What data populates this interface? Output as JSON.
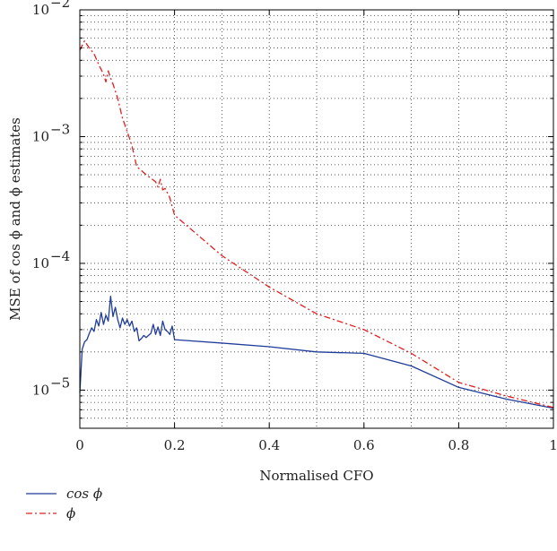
{
  "chart_data": {
    "type": "line",
    "xlabel": "Normalised CFO",
    "ylabel": "MSE of cos ϕ and ϕ estimates",
    "xlim": [
      0,
      1
    ],
    "ylim": [
      5e-06,
      0.01
    ],
    "yscale": "log",
    "grid": true,
    "grid_style": "dotted",
    "legend_position": "bottom-left, below plot",
    "x_ticks": [
      0,
      0.2,
      0.4,
      0.6,
      0.8,
      1
    ],
    "x_tick_labels": [
      "0",
      "0.2",
      "0.4",
      "0.6",
      "0.8",
      "1"
    ],
    "y_ticks": [
      1e-05,
      0.0001,
      0.001,
      0.01
    ],
    "y_tick_labels": [
      {
        "base": "10",
        "exp": "−5"
      },
      {
        "base": "10",
        "exp": "−4"
      },
      {
        "base": "10",
        "exp": "−3"
      },
      {
        "base": "10",
        "exp": "−2"
      }
    ],
    "series": [
      {
        "name": "cos ϕ",
        "color": "#1f3c99",
        "dash": "solid",
        "points": [
          [
            0,
            9.5e-06
          ],
          [
            0.005,
            2.1e-05
          ],
          [
            0.01,
            2.4e-05
          ],
          [
            0.015,
            2.5e-05
          ],
          [
            0.02,
            2.8e-05
          ],
          [
            0.025,
            3.1e-05
          ],
          [
            0.03,
            2.9e-05
          ],
          [
            0.035,
            3.6e-05
          ],
          [
            0.04,
            3.2e-05
          ],
          [
            0.045,
            4.1e-05
          ],
          [
            0.05,
            3.3e-05
          ],
          [
            0.055,
            3.9e-05
          ],
          [
            0.06,
            3.5e-05
          ],
          [
            0.065,
            5.5e-05
          ],
          [
            0.07,
            3.8e-05
          ],
          [
            0.075,
            4.5e-05
          ],
          [
            0.08,
            3.6e-05
          ],
          [
            0.085,
            3.1e-05
          ],
          [
            0.09,
            3.7e-05
          ],
          [
            0.095,
            3.3e-05
          ],
          [
            0.1,
            3.6e-05
          ],
          [
            0.105,
            3.2e-05
          ],
          [
            0.11,
            3.5e-05
          ],
          [
            0.115,
            2.9e-05
          ],
          [
            0.12,
            3.1e-05
          ],
          [
            0.125,
            2.45e-05
          ],
          [
            0.13,
            2.55e-05
          ],
          [
            0.135,
            2.7e-05
          ],
          [
            0.14,
            2.6e-05
          ],
          [
            0.145,
            2.7e-05
          ],
          [
            0.15,
            2.8e-05
          ],
          [
            0.155,
            3.3e-05
          ],
          [
            0.16,
            2.75e-05
          ],
          [
            0.165,
            3.15e-05
          ],
          [
            0.17,
            2.7e-05
          ],
          [
            0.175,
            3.5e-05
          ],
          [
            0.18,
            3e-05
          ],
          [
            0.185,
            2.9e-05
          ],
          [
            0.19,
            2.75e-05
          ],
          [
            0.195,
            3.2e-05
          ],
          [
            0.2,
            2.5e-05
          ],
          [
            0.3,
            2.35e-05
          ],
          [
            0.4,
            2.2e-05
          ],
          [
            0.5,
            2e-05
          ],
          [
            0.6,
            1.95e-05
          ],
          [
            0.7,
            1.55e-05
          ],
          [
            0.8,
            1.05e-05
          ],
          [
            0.9,
            8.5e-06
          ],
          [
            1.0,
            7.2e-06
          ]
        ]
      },
      {
        "name": "ϕ",
        "color": "#e02020",
        "dash": "dashdot",
        "points": [
          [
            0,
            0.0048
          ],
          [
            0.01,
            0.0057
          ],
          [
            0.02,
            0.005
          ],
          [
            0.03,
            0.0045
          ],
          [
            0.04,
            0.0037
          ],
          [
            0.05,
            0.0031
          ],
          [
            0.055,
            0.0027
          ],
          [
            0.06,
            0.0033
          ],
          [
            0.065,
            0.0029
          ],
          [
            0.07,
            0.0026
          ],
          [
            0.08,
            0.002
          ],
          [
            0.09,
            0.0014
          ],
          [
            0.1,
            0.0011
          ],
          [
            0.11,
            0.00085
          ],
          [
            0.12,
            0.00058
          ],
          [
            0.13,
            0.00054
          ],
          [
            0.14,
            0.0005
          ],
          [
            0.15,
            0.00047
          ],
          [
            0.16,
            0.00044
          ],
          [
            0.165,
            0.0004
          ],
          [
            0.17,
            0.00046
          ],
          [
            0.175,
            0.00038
          ],
          [
            0.18,
            0.00039
          ],
          [
            0.19,
            0.00033
          ],
          [
            0.2,
            0.00024
          ],
          [
            0.3,
            0.000115
          ],
          [
            0.4,
            6.5e-05
          ],
          [
            0.5,
            4e-05
          ],
          [
            0.6,
            3e-05
          ],
          [
            0.7,
            1.95e-05
          ],
          [
            0.8,
            1.15e-05
          ],
          [
            0.9,
            9e-06
          ],
          [
            1.0,
            7.3e-06
          ]
        ]
      }
    ]
  }
}
